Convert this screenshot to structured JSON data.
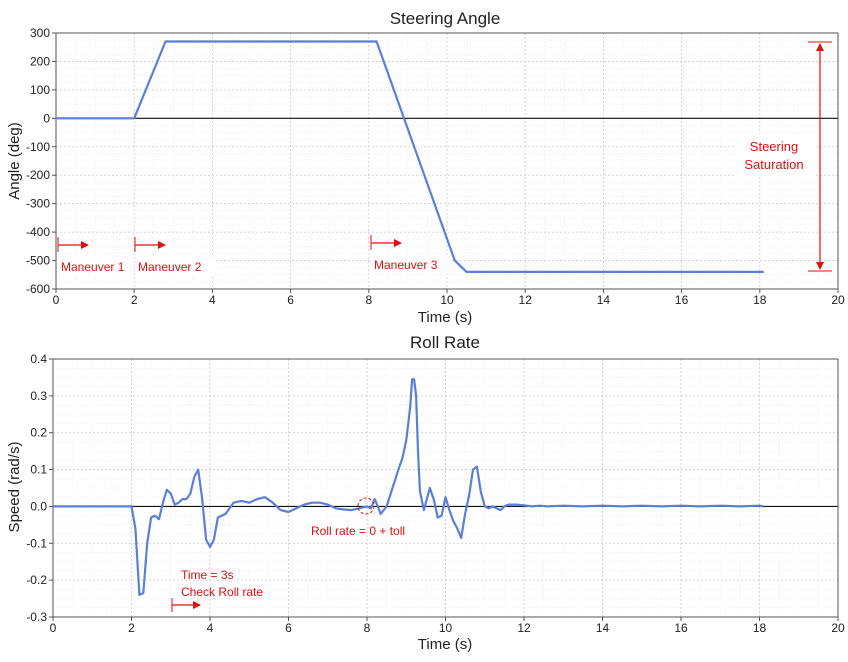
{
  "chart_data": [
    {
      "type": "line",
      "title": "Steering Angle",
      "xlabel": "Time (s)",
      "ylabel": "Angle (deg)",
      "xlim": [
        0,
        20
      ],
      "ylim": [
        -600,
        300
      ],
      "xticks": [
        "0",
        "2",
        "4",
        "6",
        "8",
        "10",
        "12",
        "14",
        "16",
        "18",
        "20"
      ],
      "yticks": [
        "300",
        "200",
        "100",
        "0",
        "-100",
        "-200",
        "-300",
        "-400",
        "-500",
        "-600"
      ],
      "grid": true,
      "line_color": "#5b7fd6",
      "series": [
        {
          "x": [
            0,
            2,
            2.8,
            8.2,
            10.2,
            10.5,
            18.1
          ],
          "y": [
            0,
            0,
            270,
            270,
            -500,
            -540,
            -540
          ]
        }
      ],
      "annotations": [
        {
          "text": "Maneuver 1",
          "x": 0
        },
        {
          "text": "Maneuver 2",
          "x": 2
        },
        {
          "text": "Maneuver 3",
          "x": 8.1
        },
        {
          "text": "Steering",
          "x": 19.2
        },
        {
          "text": "Saturation",
          "x": 19.2
        }
      ]
    },
    {
      "type": "line",
      "title": "Roll Rate",
      "xlabel": "Time (s)",
      "ylabel": "Speed (rad/s)",
      "xlim": [
        0,
        20
      ],
      "ylim": [
        -0.3,
        0.4
      ],
      "xticks": [
        "0",
        "2",
        "4",
        "6",
        "8",
        "10",
        "12",
        "14",
        "16",
        "18",
        "20"
      ],
      "yticks": [
        "0.4",
        "0.3",
        "0.2",
        "0.1",
        "0.0",
        "-0.1",
        "-0.2",
        "-0.3"
      ],
      "grid": true,
      "line_color": "#5b7fd6",
      "series": [
        {
          "x": [
            0,
            2.0,
            2.1,
            2.2,
            2.3,
            2.4,
            2.5,
            2.6,
            2.7,
            2.8,
            2.9,
            3.0,
            3.1,
            3.2,
            3.3,
            3.4,
            3.5,
            3.6,
            3.7,
            3.8,
            3.9,
            4.0,
            4.1,
            4.2,
            4.4,
            4.6,
            4.8,
            5.0,
            5.2,
            5.4,
            5.6,
            5.8,
            6.0,
            6.2,
            6.4,
            6.6,
            6.8,
            7.0,
            7.2,
            7.4,
            7.6,
            7.8,
            8.0,
            8.1,
            8.2,
            8.35,
            8.5,
            8.65,
            8.8,
            8.9,
            9.0,
            9.1,
            9.15,
            9.2,
            9.25,
            9.3,
            9.35,
            9.45,
            9.6,
            9.7,
            9.8,
            9.9,
            10.0,
            10.1,
            10.2,
            10.3,
            10.4,
            10.5,
            10.6,
            10.7,
            10.8,
            10.9,
            11.0,
            11.1,
            11.2,
            11.3,
            11.4,
            11.5,
            11.6,
            11.8,
            12.0,
            12.2,
            12.4,
            12.6,
            13.0,
            13.5,
            14.0,
            14.5,
            15.0,
            15.5,
            16.0,
            16.5,
            17.0,
            17.5,
            18.0,
            18.1
          ],
          "y": [
            0,
            0,
            -0.06,
            -0.24,
            -0.235,
            -0.1,
            -0.03,
            -0.025,
            -0.035,
            0.01,
            0.045,
            0.035,
            0.005,
            0.01,
            0.02,
            0.02,
            0.035,
            0.08,
            0.1,
            0.02,
            -0.09,
            -0.11,
            -0.09,
            -0.03,
            -0.02,
            0.01,
            0.015,
            0.01,
            0.02,
            0.025,
            0.01,
            -0.01,
            -0.015,
            -0.005,
            0.005,
            0.01,
            0.01,
            0.005,
            -0.005,
            -0.008,
            -0.01,
            -0.005,
            0.0,
            -0.005,
            0.02,
            -0.02,
            0.0,
            0.05,
            0.1,
            0.13,
            0.18,
            0.27,
            0.345,
            0.345,
            0.3,
            0.15,
            0.04,
            -0.01,
            0.05,
            0.02,
            -0.03,
            -0.025,
            0.025,
            -0.01,
            -0.04,
            -0.06,
            -0.085,
            -0.02,
            0.03,
            0.1,
            0.108,
            0.04,
            0.0,
            -0.005,
            0.0,
            -0.005,
            -0.01,
            0.0,
            0.005,
            0.005,
            0.003,
            0.0,
            0.002,
            0.0,
            0.002,
            0.0,
            0.002,
            0.0,
            0.002,
            0.0,
            0.002,
            0.0,
            0.002,
            0.0,
            0.002,
            0.0
          ]
        }
      ],
      "annotations": [
        {
          "text": "Roll rate = 0 + toll",
          "x": 8.05
        },
        {
          "text": "Time = 3s",
          "x": 3.2
        },
        {
          "text": "Check Roll rate",
          "x": 3.2
        }
      ]
    }
  ],
  "annotation_color": "#e01010",
  "grid_color": "#c9c9c9"
}
